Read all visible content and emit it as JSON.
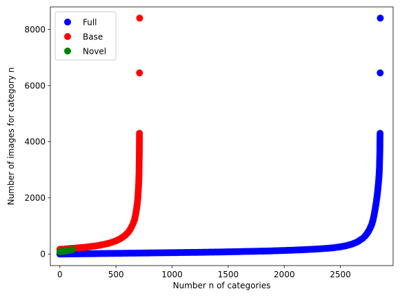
{
  "chart_data": {
    "type": "scatter",
    "title": "",
    "xlabel": "Number n of categories",
    "ylabel": "Number of images for category n",
    "xlim": [
      -85,
      2970
    ],
    "ylim": [
      -410,
      8800
    ],
    "xticks": [
      0,
      500,
      1000,
      1500,
      2000,
      2500
    ],
    "yticks": [
      0,
      2000,
      4000,
      6000,
      8000
    ],
    "grid": false,
    "legend_position": "top-left",
    "series": [
      {
        "name": "Full",
        "color": "#0000ff",
        "points": [
          [
            0,
            0
          ],
          [
            100,
            5
          ],
          [
            200,
            10
          ],
          [
            300,
            15
          ],
          [
            400,
            20
          ],
          [
            500,
            25
          ],
          [
            600,
            30
          ],
          [
            700,
            35
          ],
          [
            800,
            40
          ],
          [
            900,
            45
          ],
          [
            1000,
            50
          ],
          [
            1100,
            55
          ],
          [
            1200,
            60
          ],
          [
            1300,
            66
          ],
          [
            1400,
            72
          ],
          [
            1500,
            80
          ],
          [
            1600,
            88
          ],
          [
            1700,
            96
          ],
          [
            1800,
            105
          ],
          [
            1900,
            115
          ],
          [
            2000,
            128
          ],
          [
            2100,
            142
          ],
          [
            2200,
            160
          ],
          [
            2300,
            182
          ],
          [
            2400,
            210
          ],
          [
            2450,
            230
          ],
          [
            2500,
            258
          ],
          [
            2550,
            295
          ],
          [
            2600,
            350
          ],
          [
            2650,
            430
          ],
          [
            2700,
            560
          ],
          [
            2720,
            640
          ],
          [
            2740,
            740
          ],
          [
            2760,
            880
          ],
          [
            2780,
            1060
          ],
          [
            2790,
            1200
          ],
          [
            2800,
            1380
          ],
          [
            2810,
            1600
          ],
          [
            2820,
            1850
          ],
          [
            2830,
            2150
          ],
          [
            2835,
            2350
          ],
          [
            2840,
            2550
          ],
          [
            2845,
            2800
          ],
          [
            2848,
            3050
          ],
          [
            2850,
            3350
          ],
          [
            2852,
            3650
          ],
          [
            2853,
            4100
          ],
          [
            2854,
            4300
          ],
          [
            2855,
            6450
          ],
          [
            2856,
            8400
          ]
        ]
      },
      {
        "name": "Base",
        "color": "#ff0000",
        "points": [
          [
            0,
            170
          ],
          [
            20,
            175
          ],
          [
            50,
            185
          ],
          [
            100,
            200
          ],
          [
            150,
            215
          ],
          [
            200,
            235
          ],
          [
            250,
            255
          ],
          [
            300,
            280
          ],
          [
            350,
            310
          ],
          [
            400,
            350
          ],
          [
            450,
            400
          ],
          [
            500,
            470
          ],
          [
            540,
            550
          ],
          [
            580,
            660
          ],
          [
            610,
            780
          ],
          [
            630,
            900
          ],
          [
            650,
            1060
          ],
          [
            665,
            1220
          ],
          [
            675,
            1400
          ],
          [
            683,
            1600
          ],
          [
            690,
            1800
          ],
          [
            695,
            2000
          ],
          [
            698,
            2200
          ],
          [
            701,
            2400
          ],
          [
            703,
            2600
          ],
          [
            705,
            2800
          ],
          [
            706,
            3000
          ],
          [
            707,
            3300
          ],
          [
            708,
            3600
          ],
          [
            709,
            4100
          ],
          [
            709,
            4300
          ],
          [
            710,
            6450
          ],
          [
            711,
            8400
          ]
        ]
      },
      {
        "name": "Novel",
        "color": "#008000",
        "points": [
          [
            0,
            80
          ],
          [
            10,
            90
          ],
          [
            20,
            95
          ],
          [
            30,
            100
          ],
          [
            40,
            105
          ],
          [
            50,
            110
          ],
          [
            60,
            115
          ],
          [
            70,
            120
          ],
          [
            80,
            125
          ],
          [
            90,
            135
          ],
          [
            100,
            145
          ],
          [
            110,
            160
          ]
        ]
      }
    ]
  }
}
